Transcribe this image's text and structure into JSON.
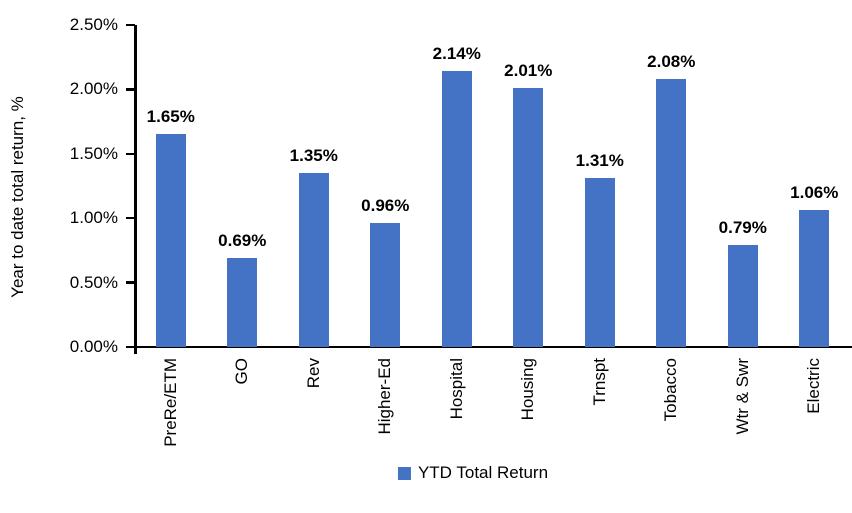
{
  "chart_data": {
    "type": "bar",
    "title": "",
    "categories": [
      "PreRe/ETM",
      "GO",
      "Rev",
      "Higher-Ed",
      "Hospital",
      "Housing",
      "Trnspt",
      "Tobacco",
      "Wtr & Swr",
      "Electric"
    ],
    "values": [
      1.65,
      0.69,
      1.35,
      0.96,
      2.14,
      2.01,
      1.31,
      2.08,
      0.79,
      1.06
    ],
    "data_labels": [
      "1.65%",
      "0.69%",
      "1.35%",
      "0.96%",
      "2.14%",
      "2.01%",
      "1.31%",
      "2.08%",
      "0.79%",
      "1.06%"
    ],
    "xlabel": "",
    "ylabel": "Year to date total return, %",
    "ylim": [
      0,
      2.5
    ],
    "ytick_step": 0.5,
    "ytick_labels": [
      "0.00%",
      "0.50%",
      "1.00%",
      "1.50%",
      "2.00%",
      "2.50%"
    ],
    "grid": false,
    "legend": {
      "label": "YTD Total Return",
      "position": "bottom"
    },
    "colors": {
      "bar": "#4472C4",
      "axis": "#000000",
      "text": "#000000",
      "background": "#FFFFFF"
    }
  }
}
